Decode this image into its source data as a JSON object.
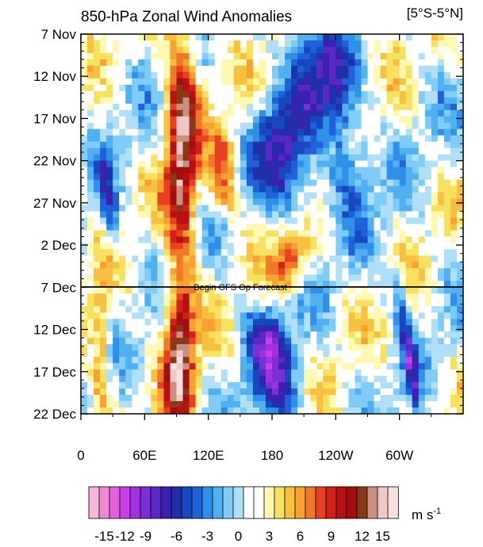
{
  "chart_data": {
    "type": "heatmap",
    "title": "850-hPa Zonal Wind Anomalies",
    "region_label": "[5°S-5°N]",
    "y_ticks": [
      "7 Nov",
      "12 Nov",
      "17 Nov",
      "22 Nov",
      "27 Nov",
      "2 Dec",
      "7 Dec",
      "12 Dec",
      "17 Dec",
      "22 Dec"
    ],
    "x_ticks": [
      {
        "label": "0",
        "lon": 0
      },
      {
        "label": "60E",
        "lon": 60
      },
      {
        "label": "120E",
        "lon": 120
      },
      {
        "label": "180",
        "lon": 180
      },
      {
        "label": "120W",
        "lon": 240
      },
      {
        "label": "60W",
        "lon": 300
      }
    ],
    "xlim_lon": [
      0,
      360
    ],
    "ylim_days": [
      0,
      45
    ],
    "forecast_line_day": 30,
    "forecast_label": "Begin GFS Op Forecast",
    "colorbar": {
      "labels": [
        "-15",
        "-12",
        "-9",
        "-6",
        "-3",
        "0",
        "3",
        "6",
        "9",
        "12",
        "15"
      ],
      "label_positions": [
        1.5,
        3.5,
        5.5,
        8.5,
        11.5,
        14.5,
        17.5,
        20.5,
        23.5,
        26.5,
        28.5
      ],
      "unit_text": "m s",
      "unit_exp": "-1",
      "colors": [
        "#f8b8d8",
        "#f08ad0",
        "#e060e0",
        "#c840e8",
        "#a030e0",
        "#7830d8",
        "#5a28c8",
        "#3c20b0",
        "#2030a8",
        "#1848c0",
        "#2060d8",
        "#3090e8",
        "#50b0f0",
        "#80ccf8",
        "#b0e0f8",
        "#ffffff",
        "#ffffff",
        "#fff8b0",
        "#f8e060",
        "#f8c040",
        "#f8a030",
        "#f07828",
        "#e84020",
        "#d02018",
        "#b81010",
        "#a01010",
        "#8a3818",
        "#c89080",
        "#f0c8c8",
        "#f8e0e0"
      ]
    },
    "anomaly_features": [
      {
        "kind": "westerly",
        "lon": 95,
        "day_start": 0,
        "day_end": 27,
        "half_width": 15,
        "amplitude": 11
      },
      {
        "kind": "westerly",
        "lon": 93,
        "day_start": 31,
        "day_end": 45,
        "half_width": 14,
        "amplitude": 12
      },
      {
        "kind": "westerly",
        "lon": 135,
        "day_start": 12,
        "day_end": 20,
        "half_width": 14,
        "amplitude": 6
      },
      {
        "kind": "westerly",
        "lon": 197,
        "day_start": 25,
        "day_end": 29,
        "half_width": 16,
        "amplitude": 7
      },
      {
        "kind": "westerly",
        "lon": 18,
        "day_start": 31,
        "day_end": 45,
        "half_width": 10,
        "amplitude": 5
      },
      {
        "kind": "easterly",
        "lon": 215,
        "day_start": 0,
        "day_end": 10,
        "half_width": 22,
        "amplitude": -5
      },
      {
        "kind": "easterly",
        "lon": 190,
        "day_start": 10,
        "day_end": 20,
        "half_width": 25,
        "amplitude": -8
      },
      {
        "kind": "easterly",
        "lon": 180,
        "day_start": 34,
        "day_end": 45,
        "half_width": 22,
        "amplitude": -8
      },
      {
        "kind": "easterly",
        "lon": 245,
        "day_start": 0,
        "day_end": 20,
        "half_width": 20,
        "amplitude": -6
      },
      {
        "kind": "easterly",
        "lon": 25,
        "day_start": 16,
        "day_end": 23,
        "half_width": 8,
        "amplitude": -6
      },
      {
        "kind": "easterly",
        "lon": 308,
        "day_start": 30,
        "day_end": 45,
        "half_width": 6,
        "amplitude": -7
      }
    ]
  }
}
